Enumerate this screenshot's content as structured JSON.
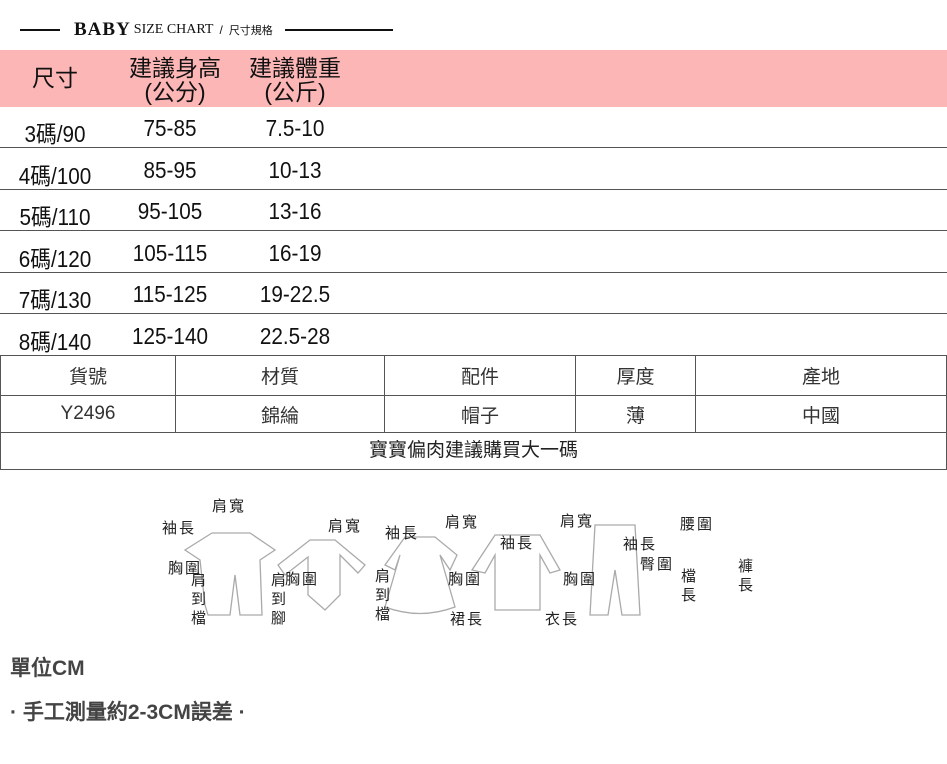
{
  "header": {
    "baby": "BABY",
    "size_chart": "SIZE CHART",
    "slash": "/",
    "zh": "尺寸規格"
  },
  "table": {
    "columns": [
      "尺寸",
      "建議身高\n(公分)",
      "建議體重\n(公斤)"
    ],
    "col_height": [
      "建議身高",
      "(公分)"
    ],
    "col_weight": [
      "建議體重",
      "(公斤)"
    ],
    "rows": [
      [
        "3碼/90",
        "75-85",
        "7.5-10"
      ],
      [
        "4碼/100",
        "85-95",
        "10-13"
      ],
      [
        "5碼/110",
        "95-105",
        "13-16"
      ],
      [
        "6碼/120",
        "105-115",
        "16-19"
      ],
      [
        "7碼/130",
        "115-125",
        "19-22.5"
      ],
      [
        "8碼/140",
        "125-140",
        "22.5-28"
      ]
    ]
  },
  "product": {
    "headers": [
      "貨號",
      "材質",
      "配件",
      "厚度",
      "產地"
    ],
    "values": [
      "Y2496",
      "錦綸",
      "帽子",
      "薄",
      "中國"
    ],
    "note": "寶寶偏肉建議購買大一碼"
  },
  "diagram": {
    "labels": [
      "肩寬",
      "袖長",
      "胸圍",
      "肩到檔",
      "肩到腳",
      "肩寬",
      "袖長",
      "胸圍",
      "肩到檔",
      "肩寬",
      "袖長",
      "胸圍",
      "裙長",
      "肩寬",
      "袖長",
      "胸圍",
      "衣長",
      "腰圍",
      "臀圍",
      "檔長",
      "褲長"
    ]
  },
  "footer": {
    "unit": "單位CM",
    "error": "· 手工測量約2-3CM誤差 ·"
  },
  "colors": {
    "header_bg": "#fdb6b6"
  }
}
